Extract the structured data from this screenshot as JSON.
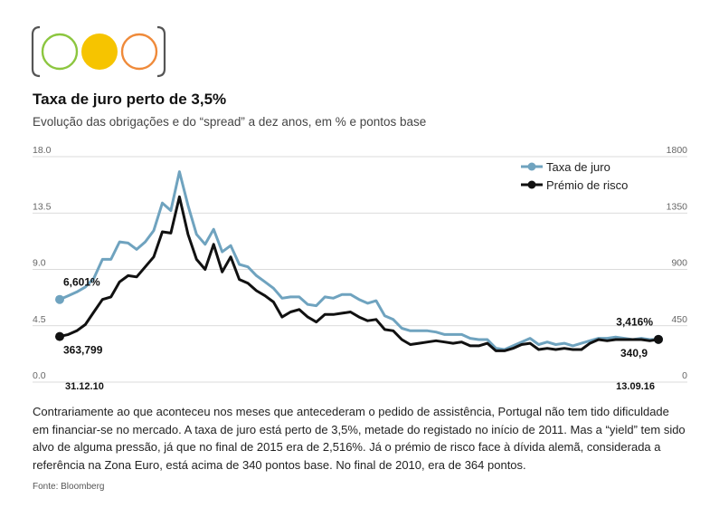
{
  "logo": {
    "icon": "traffic-light-icon",
    "circles": [
      {
        "name": "green-circle-icon",
        "color": "#8cc63f",
        "filled": false
      },
      {
        "name": "yellow-circle-icon",
        "color": "#f6c400",
        "filled": true
      },
      {
        "name": "orange-circle-icon",
        "color": "#ef8a3a",
        "filled": false
      }
    ]
  },
  "header": {
    "title": "Taxa de juro perto de 3,5%",
    "subtitle": "Evolução das obrigações e do “spread” a dez anos, em % e pontos base"
  },
  "chart_data": {
    "type": "line",
    "legend_position": "top-right",
    "grid": true,
    "x_start_label": "31.12.10",
    "x_end_label": "13.09.16",
    "left_axis": {
      "ticks": [
        "18.0",
        "13.5",
        "9.0",
        "4.5",
        "0.0"
      ],
      "ylim": [
        0,
        18
      ]
    },
    "right_axis": {
      "ticks": [
        "1800",
        "1350",
        "900",
        "450",
        "0"
      ],
      "ylim": [
        0,
        1800
      ]
    },
    "series": [
      {
        "name": "Taxa de juro",
        "axis": "left",
        "color": "#6fa3bf",
        "values": [
          6.6,
          6.9,
          7.2,
          7.6,
          8.3,
          9.8,
          9.8,
          11.2,
          11.1,
          10.6,
          11.2,
          12.1,
          14.3,
          13.7,
          16.8,
          14.1,
          11.8,
          11.0,
          12.2,
          10.4,
          10.9,
          9.4,
          9.2,
          8.5,
          8.0,
          7.5,
          6.7,
          6.8,
          6.8,
          6.2,
          6.1,
          6.8,
          6.7,
          7.0,
          7.0,
          6.6,
          6.3,
          6.5,
          5.3,
          5.0,
          4.3,
          4.1,
          4.1,
          4.1,
          4.0,
          3.8,
          3.8,
          3.8,
          3.5,
          3.4,
          3.4,
          2.7,
          2.6,
          2.9,
          3.2,
          3.5,
          3.0,
          3.2,
          3.0,
          3.1,
          2.9,
          3.1,
          3.3,
          3.5,
          3.5,
          3.6,
          3.5,
          3.4,
          3.5,
          3.4,
          3.416
        ],
        "point_labels": [
          {
            "index": 0,
            "text": "6,601%"
          },
          {
            "index": 70,
            "text": "3,416%"
          }
        ]
      },
      {
        "name": "Prémio de risco",
        "axis": "right",
        "color": "#111111",
        "values": [
          364,
          380,
          410,
          460,
          560,
          660,
          680,
          800,
          850,
          840,
          920,
          1000,
          1200,
          1190,
          1480,
          1180,
          980,
          900,
          1100,
          880,
          1000,
          820,
          790,
          730,
          690,
          640,
          520,
          560,
          580,
          520,
          480,
          540,
          540,
          550,
          560,
          520,
          490,
          500,
          420,
          410,
          340,
          300,
          310,
          320,
          330,
          320,
          310,
          320,
          290,
          290,
          310,
          250,
          250,
          270,
          300,
          310,
          260,
          270,
          260,
          270,
          260,
          260,
          310,
          340,
          330,
          340,
          340,
          340,
          340,
          330,
          340.9
        ],
        "point_labels": [
          {
            "index": 0,
            "text": "363,799"
          },
          {
            "index": 70,
            "text": "340,9"
          }
        ]
      }
    ]
  },
  "description": "Contrariamente ao que aconteceu nos meses que antecederam o pedido de assistência, Portugal não tem tido dificuldade em financiar-se no mercado. A taxa de juro está perto de 3,5%, metade do registado no início de 2011. Mas a “yield” tem sido alvo de alguma pressão, já que no final de 2015 era de  2,516%. Já o prémio de risco face à dívida alemã, considerada a referência na Zona Euro, está acima de 340 pontos base. No final de 2010, era de 364 pontos.",
  "source": "Fonte: Bloomberg"
}
